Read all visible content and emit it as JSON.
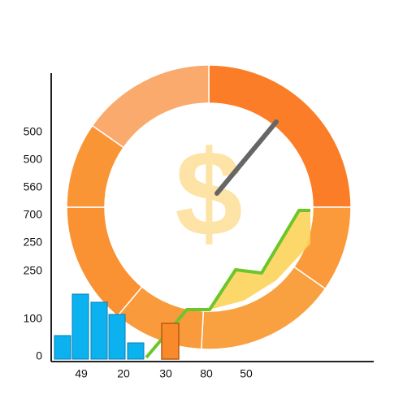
{
  "icon": "$",
  "y_labels": [
    "500",
    "500",
    "560",
    "700",
    "250",
    "250",
    "100",
    "0"
  ],
  "x_labels": [
    "49",
    "20",
    "30",
    "80",
    "50"
  ]
}
